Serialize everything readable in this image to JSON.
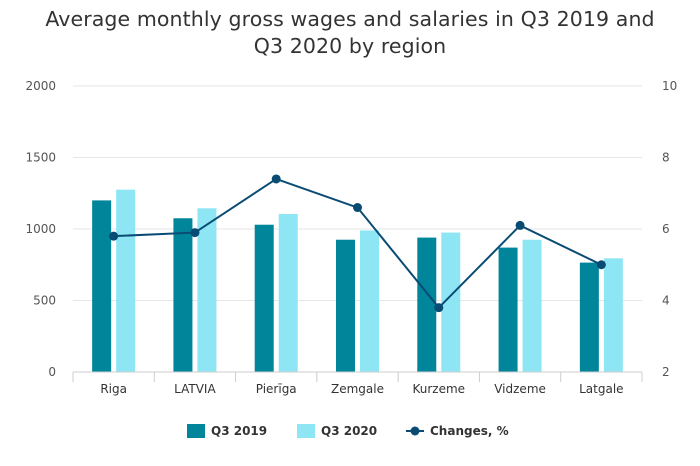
{
  "chart_data": {
    "type": "bar",
    "title_lines": [
      "Average monthly gross wages and salaries in Q3 2019 and",
      "Q3 2020 by region"
    ],
    "categories": [
      "Riga",
      "LATVIA",
      "Pierīga",
      "Zemgale",
      "Kurzeme",
      "Vidzeme",
      "Latgale"
    ],
    "series": [
      {
        "name": "Q3 2019",
        "type": "bar",
        "axis": "left",
        "color": "#00859a",
        "values": [
          1200,
          1075,
          1030,
          925,
          940,
          870,
          765
        ]
      },
      {
        "name": "Q3 2020",
        "type": "bar",
        "axis": "left",
        "color": "#8ee6f5",
        "values": [
          1275,
          1145,
          1105,
          990,
          975,
          925,
          795
        ]
      },
      {
        "name": "Changes, %",
        "type": "line",
        "axis": "right",
        "color": "#0a4b73",
        "values": [
          5.8,
          5.9,
          7.4,
          6.6,
          3.8,
          6.1,
          5.0
        ]
      }
    ],
    "y_left": {
      "ticks": [
        0,
        500,
        1000,
        1500,
        2000
      ],
      "range": [
        0,
        2000
      ]
    },
    "y_right": {
      "ticks": [
        2,
        4,
        6,
        8,
        10
      ],
      "range": [
        2,
        10
      ]
    },
    "grid": true,
    "legend_position": "bottom"
  }
}
